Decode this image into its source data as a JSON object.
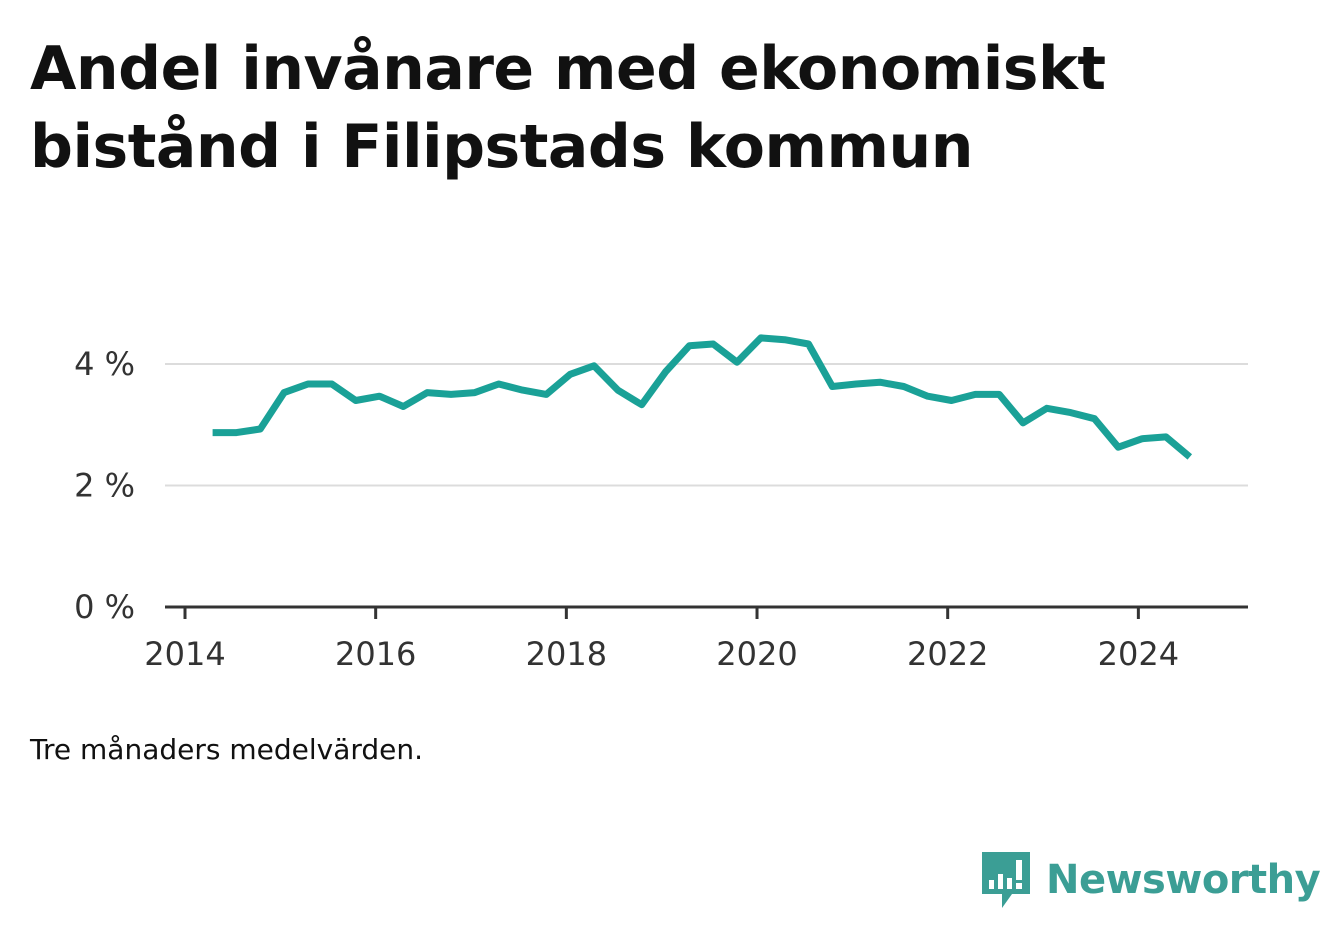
{
  "title": "Andel invånare med ekonomiskt bistånd i Filipstads kommun",
  "note": "Tre månaders medelvärden.",
  "brand": {
    "name": "Newsworthy",
    "color": "#3b9e95",
    "icon": "newsworthy-logo-icon"
  },
  "chart_data": {
    "type": "line",
    "title": "Andel invånare med ekonomiskt bistånd i Filipstads kommun",
    "xlabel": "",
    "ylabel": "",
    "xlim": [
      2014.0,
      2025.15
    ],
    "ylim": [
      0,
      5
    ],
    "x_ticks": [
      {
        "value": 2014,
        "label": "2014"
      },
      {
        "value": 2016,
        "label": "2016"
      },
      {
        "value": 2018,
        "label": "2018"
      },
      {
        "value": 2020,
        "label": "2020"
      },
      {
        "value": 2022,
        "label": "2022"
      },
      {
        "value": 2024,
        "label": "2024"
      }
    ],
    "y_ticks": [
      {
        "value": 0,
        "label": "0 %"
      },
      {
        "value": 2,
        "label": "2 %"
      },
      {
        "value": 4,
        "label": "4 %"
      }
    ],
    "grid": true,
    "line_color": "#1aa197",
    "series": [
      {
        "values": [
          [
            2014.29,
            2.87
          ],
          [
            2014.54,
            2.87
          ],
          [
            2014.79,
            2.93
          ],
          [
            2015.04,
            3.53
          ],
          [
            2015.29,
            3.67
          ],
          [
            2015.54,
            3.67
          ],
          [
            2015.79,
            3.4
          ],
          [
            2016.04,
            3.47
          ],
          [
            2016.29,
            3.3
          ],
          [
            2016.54,
            3.53
          ],
          [
            2016.79,
            3.5
          ],
          [
            2017.04,
            3.53
          ],
          [
            2017.29,
            3.67
          ],
          [
            2017.54,
            3.57
          ],
          [
            2017.79,
            3.5
          ],
          [
            2018.04,
            3.83
          ],
          [
            2018.29,
            3.97
          ],
          [
            2018.54,
            3.57
          ],
          [
            2018.79,
            3.33
          ],
          [
            2019.04,
            3.87
          ],
          [
            2019.29,
            4.3
          ],
          [
            2019.54,
            4.33
          ],
          [
            2019.79,
            4.03
          ],
          [
            2020.04,
            4.43
          ],
          [
            2020.29,
            4.4
          ],
          [
            2020.54,
            4.33
          ],
          [
            2020.79,
            3.63
          ],
          [
            2021.04,
            3.67
          ],
          [
            2021.29,
            3.7
          ],
          [
            2021.54,
            3.63
          ],
          [
            2021.79,
            3.47
          ],
          [
            2022.04,
            3.4
          ],
          [
            2022.29,
            3.5
          ],
          [
            2022.54,
            3.5
          ],
          [
            2022.79,
            3.03
          ],
          [
            2023.04,
            3.27
          ],
          [
            2023.29,
            3.2
          ],
          [
            2023.54,
            3.1
          ],
          [
            2023.79,
            2.63
          ],
          [
            2024.04,
            2.77
          ],
          [
            2024.29,
            2.8
          ],
          [
            2024.54,
            2.47
          ]
        ]
      }
    ]
  }
}
